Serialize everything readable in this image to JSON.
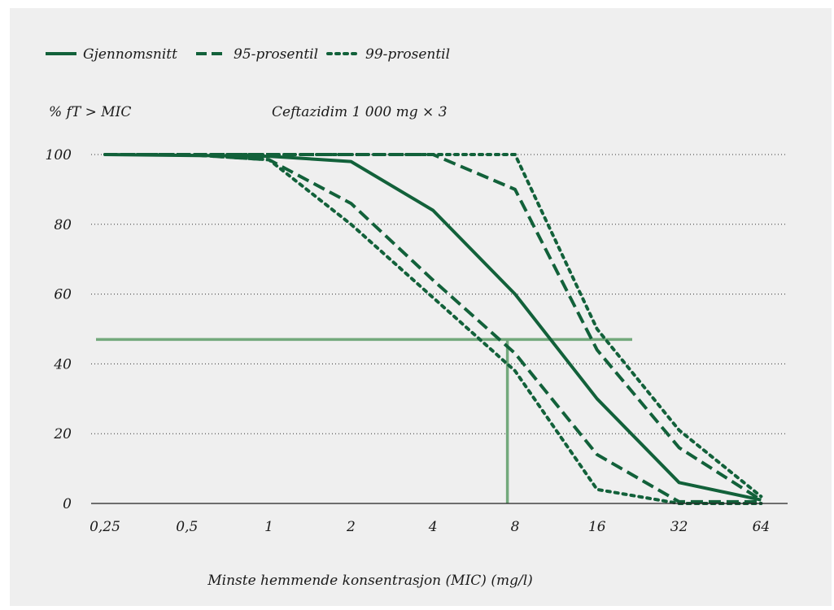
{
  "chart_data": {
    "type": "line",
    "title": "Ceftazidim 1 000 mg × 3",
    "ylabel": "% fT > MIC",
    "xlabel": "Minste hemmende konsentrasjon (MIC) (mg/l)",
    "categories": [
      "0,25",
      "0,5",
      "1",
      "2",
      "4",
      "8",
      "16",
      "32",
      "64"
    ],
    "x_scale": "log2",
    "ylim": [
      0,
      100
    ],
    "yticks": [
      "100",
      "80",
      "60",
      "40",
      "20",
      "0"
    ],
    "ytick_values": [
      100,
      80,
      60,
      40,
      20,
      0
    ],
    "grid": "horizontal dotted",
    "legend_placement": "top-left",
    "series": [
      {
        "name": "Gjennomsnitt",
        "style": "solid",
        "x": [
          0.25,
          1,
          2,
          4,
          8,
          16,
          32,
          64
        ],
        "values": [
          100,
          99.5,
          98,
          84,
          60,
          30,
          6,
          1
        ]
      },
      {
        "name": "95-prosentil",
        "style": "dashed",
        "x": [
          0.25,
          0.5,
          1,
          2,
          4,
          8,
          16,
          32,
          64
        ],
        "values": [
          100,
          100,
          98.5,
          86,
          64,
          43,
          14,
          0.5,
          0.5
        ]
      },
      {
        "name": "99-prosentil",
        "style": "dotted",
        "x": [
          0.25,
          0.5,
          1,
          2,
          4,
          8,
          16,
          32,
          64
        ],
        "values": [
          100,
          100,
          98.5,
          80,
          59,
          38,
          4,
          0,
          0
        ]
      },
      {
        "style": "dashed",
        "x": [
          0.25,
          2,
          4,
          8,
          16,
          32,
          64
        ],
        "values": [
          100,
          100,
          100,
          90,
          44,
          16,
          1
        ]
      },
      {
        "style": "dotted",
        "x": [
          0.25,
          2,
          4,
          8,
          16,
          32,
          64
        ],
        "values": [
          100,
          100,
          100,
          100,
          50,
          21,
          2
        ]
      }
    ],
    "reference_lines": {
      "horizontal_y": 47,
      "vertical_x": 7.5
    },
    "colors": {
      "series": "#12613a",
      "reference": "#73a97c",
      "grid": "#333333",
      "background": "#efefef"
    }
  }
}
